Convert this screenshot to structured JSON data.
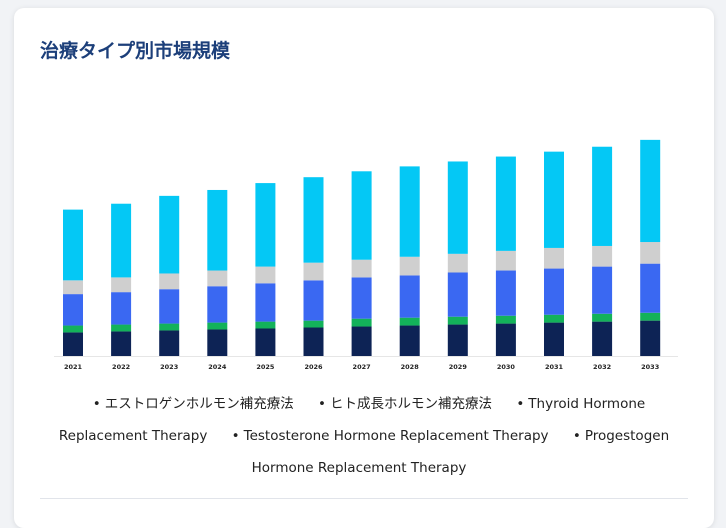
{
  "title": "治療タイプ別市場規模",
  "chart_data": {
    "type": "bar",
    "stacked": true,
    "categories": [
      "2021",
      "2022",
      "2023",
      "2024",
      "2025",
      "2026",
      "2027",
      "2028",
      "2029",
      "2030",
      "2031",
      "2032",
      "2033"
    ],
    "series": [
      {
        "name": "Progestogen Hormone Replacement Therapy",
        "color": "#0d2355",
        "values": [
          24,
          25,
          26,
          27,
          28,
          29,
          30,
          31,
          32,
          33,
          34,
          35,
          36
        ]
      },
      {
        "name": "Testosterone Hormone Replacement Therapy",
        "color": "#13b25a",
        "values": [
          7,
          7,
          7,
          7,
          7,
          7,
          8,
          8,
          8,
          8,
          8,
          8,
          8
        ]
      },
      {
        "name": "Thyroid Hormone Replacement Therapy",
        "color": "#3a68f2",
        "values": [
          32,
          33,
          35,
          37,
          39,
          41,
          42,
          43,
          45,
          46,
          47,
          48,
          50
        ]
      },
      {
        "name": "ヒト成長ホルモン補充療法",
        "color": "#cfcfcf",
        "values": [
          14,
          15,
          16,
          16,
          17,
          18,
          18,
          19,
          19,
          20,
          21,
          21,
          22
        ]
      },
      {
        "name": "エストロゲンホルモン補充療法",
        "color": "#04c8f5",
        "values": [
          72,
          75,
          79,
          82,
          85,
          87,
          90,
          92,
          94,
          96,
          98,
          101,
          104
        ]
      }
    ],
    "legend_order": [
      "エストロゲンホルモン補充療法",
      "ヒト成長ホルモン補充療法",
      "Thyroid Hormone Replacement Therapy",
      "Testosterone Hormone Replacement Therapy",
      "Progestogen Hormone Replacement Therapy"
    ],
    "ylim": [
      0,
      228
    ],
    "grid": false,
    "legend_position": "bottom"
  },
  "legend": [
    {
      "label": "エストロゲンホルモン補充療法"
    },
    {
      "label": "ヒト成長ホルモン補充療法"
    },
    {
      "label": "Thyroid Hormone Replacement Therapy"
    },
    {
      "label": "Testosterone Hormone Replacement Therapy"
    },
    {
      "label": "Progestogen Hormone Replacement Therapy"
    }
  ]
}
